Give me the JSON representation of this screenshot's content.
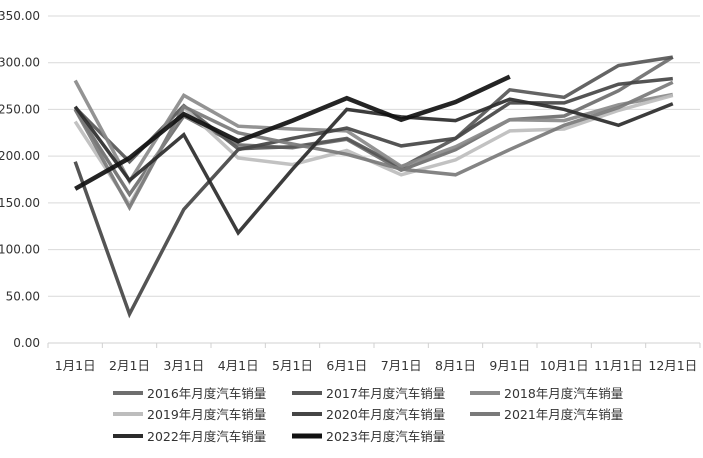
{
  "chart_data": {
    "type": "line",
    "title": "",
    "xlabel": "",
    "ylabel": "",
    "ylim": [
      0,
      350
    ],
    "yticks": [
      "0.00",
      "50.00",
      "100.00",
      "150.00",
      "200.00",
      "250.00",
      "300.00",
      "350.00"
    ],
    "grid": true,
    "legend_position": "bottom",
    "categories": [
      "1月1日",
      "2月1日",
      "3月1日",
      "4月1日",
      "5月1日",
      "6月1日",
      "7月1日",
      "8月1日",
      "9月1日",
      "10月1日",
      "11月1日",
      "12月1日"
    ],
    "series": [
      {
        "name": "2016年月度汽车销量",
        "color": "#6e6e6e",
        "width": 3.5,
        "values": [
          250,
          159,
          243,
          212,
          209,
          218,
          185,
          207,
          239,
          243,
          270,
          306
        ]
      },
      {
        "name": "2017年月度汽车销量",
        "color": "#575757",
        "width": 3.5,
        "values": [
          252,
          194,
          254,
          208,
          210,
          219,
          188,
          219,
          271,
          263,
          297,
          306
        ]
      },
      {
        "name": "2018年月度汽车销量",
        "color": "#8a8a8a",
        "width": 3.5,
        "values": [
          281,
          173,
          265,
          232,
          229,
          227,
          189,
          210,
          239,
          238,
          255,
          266
        ]
      },
      {
        "name": "2019年月度汽车销量",
        "color": "#bdbdbd",
        "width": 3.5,
        "values": [
          237,
          148,
          252,
          198,
          191,
          206,
          180,
          196,
          227,
          229,
          249,
          265
        ]
      },
      {
        "name": "2020年月度汽车销量",
        "color": "#454545",
        "width": 3.5,
        "values": [
          194,
          31,
          143,
          207,
          219,
          230,
          211,
          219,
          257,
          257,
          277,
          283
        ]
      },
      {
        "name": "2021年月度汽车销量",
        "color": "#7a7a7a",
        "width": 3.5,
        "values": [
          250,
          145,
          253,
          225,
          213,
          202,
          186,
          180,
          207,
          233,
          252,
          279
        ]
      },
      {
        "name": "2022年月度汽车销量",
        "color": "#2b2b2b",
        "width": 3.5,
        "values": [
          253,
          174,
          223,
          118,
          186,
          250,
          242,
          238,
          261,
          250,
          233,
          256
        ]
      },
      {
        "name": "2023年月度汽车销量",
        "color": "#111111",
        "width": 4.5,
        "values": [
          165,
          198,
          245,
          216,
          238,
          262,
          239,
          258,
          285
        ]
      }
    ]
  }
}
